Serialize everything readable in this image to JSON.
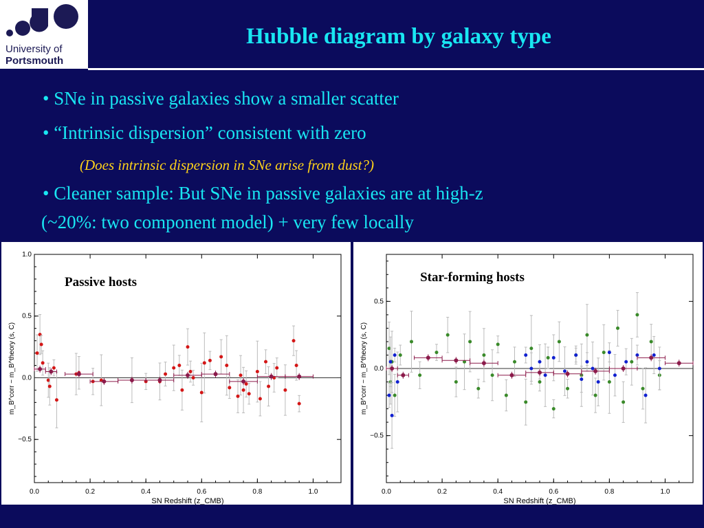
{
  "header": {
    "logo_line1": "University of",
    "logo_line2": "Portsmouth",
    "title": "Hubble diagram by galaxy type"
  },
  "colors": {
    "background": "#0b0b5c",
    "title": "#19e6f2",
    "note": "#ffd21a",
    "passive_points": "#d41616",
    "starforming_points": "#3a8a2a",
    "highz_points": "#1020d0",
    "binned": "#8b1a4a"
  },
  "bullets": [
    {
      "text": "• SNe in passive galaxies show a smaller scatter"
    },
    {
      "text": "• “Intrinsic dispersion” consistent with zero"
    },
    {
      "text": "• Cleaner sample: But SNe in passive galaxies are at high-z"
    },
    {
      "text": "(~20%: two component model) + very few locally"
    }
  ],
  "note": "(Does intrinsic dispersion in SNe arise from dust?)",
  "chart_data": [
    {
      "type": "scatter",
      "title": "Passive hosts",
      "xlabel": "SN Redshift (z_CMB)",
      "ylabel": "m_B^corr − m_B^theory (s, C)",
      "xlim": [
        0.0,
        1.1
      ],
      "ylim": [
        -0.85,
        1.0
      ],
      "xticks": [
        "0.0",
        "0.2",
        "0.4",
        "0.6",
        "0.8",
        "1.0"
      ],
      "yticks": [
        "−0.5",
        "0.0",
        "0.5",
        "1.0"
      ],
      "series": [
        {
          "marker": "filled circle",
          "color": "red",
          "points": [
            {
              "x": 0.01,
              "y": 0.2
            },
            {
              "x": 0.02,
              "y": 0.35
            },
            {
              "x": 0.025,
              "y": 0.27
            },
            {
              "x": 0.03,
              "y": 0.12
            },
            {
              "x": 0.05,
              "y": -0.02
            },
            {
              "x": 0.055,
              "y": -0.07
            },
            {
              "x": 0.07,
              "y": 0.08
            },
            {
              "x": 0.08,
              "y": -0.18
            },
            {
              "x": 0.15,
              "y": 0.03
            },
            {
              "x": 0.16,
              "y": 0.04
            },
            {
              "x": 0.21,
              "y": -0.03
            },
            {
              "x": 0.24,
              "y": -0.02
            },
            {
              "x": 0.35,
              "y": -0.02
            },
            {
              "x": 0.4,
              "y": -0.03
            },
            {
              "x": 0.45,
              "y": -0.03
            },
            {
              "x": 0.47,
              "y": 0.03
            },
            {
              "x": 0.5,
              "y": 0.08
            },
            {
              "x": 0.52,
              "y": 0.1
            },
            {
              "x": 0.53,
              "y": -0.1
            },
            {
              "x": 0.55,
              "y": 0.25
            },
            {
              "x": 0.56,
              "y": 0.05
            },
            {
              "x": 0.57,
              "y": 0.0
            },
            {
              "x": 0.6,
              "y": -0.12
            },
            {
              "x": 0.61,
              "y": 0.12
            },
            {
              "x": 0.63,
              "y": 0.14
            },
            {
              "x": 0.67,
              "y": 0.17
            },
            {
              "x": 0.69,
              "y": 0.1
            },
            {
              "x": 0.7,
              "y": -0.08
            },
            {
              "x": 0.73,
              "y": -0.15
            },
            {
              "x": 0.74,
              "y": 0.02
            },
            {
              "x": 0.75,
              "y": -0.1
            },
            {
              "x": 0.76,
              "y": -0.05
            },
            {
              "x": 0.77,
              "y": -0.13
            },
            {
              "x": 0.8,
              "y": 0.05
            },
            {
              "x": 0.81,
              "y": -0.17
            },
            {
              "x": 0.83,
              "y": 0.13
            },
            {
              "x": 0.84,
              "y": -0.07
            },
            {
              "x": 0.86,
              "y": 0.0
            },
            {
              "x": 0.87,
              "y": 0.08
            },
            {
              "x": 0.9,
              "y": -0.1
            },
            {
              "x": 0.93,
              "y": 0.3
            },
            {
              "x": 0.94,
              "y": 0.1
            },
            {
              "x": 0.95,
              "y": -0.21
            }
          ]
        },
        {
          "name": "binned",
          "marker": "binned means with x and y error bars",
          "color": "dark red",
          "points": [
            {
              "x": 0.02,
              "y": 0.07
            },
            {
              "x": 0.06,
              "y": 0.05
            },
            {
              "x": 0.16,
              "y": 0.03
            },
            {
              "x": 0.25,
              "y": -0.03
            },
            {
              "x": 0.35,
              "y": -0.02
            },
            {
              "x": 0.45,
              "y": -0.02
            },
            {
              "x": 0.55,
              "y": 0.02
            },
            {
              "x": 0.65,
              "y": 0.03
            },
            {
              "x": 0.75,
              "y": -0.03
            },
            {
              "x": 0.85,
              "y": 0.01
            },
            {
              "x": 0.95,
              "y": 0.01
            }
          ]
        }
      ]
    },
    {
      "type": "scatter",
      "title": "Star-forming hosts",
      "xlabel": "SN Redshift (z_CMB)",
      "ylabel": "m_B^corr − m_B^theory (s, C)",
      "xlim": [
        0.0,
        1.1
      ],
      "ylim": [
        -0.85,
        0.85
      ],
      "xticks": [
        "0.0",
        "0.2",
        "0.4",
        "0.6",
        "0.8",
        "1.0"
      ],
      "yticks": [
        "−0.5",
        "0.0",
        "0.5"
      ],
      "series": [
        {
          "marker": "filled circle",
          "color": "green",
          "points": [
            {
              "x": 0.01,
              "y": 0.15
            },
            {
              "x": 0.015,
              "y": -0.1
            },
            {
              "x": 0.02,
              "y": 0.05
            },
            {
              "x": 0.03,
              "y": -0.2
            },
            {
              "x": 0.05,
              "y": 0.1
            },
            {
              "x": 0.09,
              "y": 0.2
            },
            {
              "x": 0.12,
              "y": -0.05
            },
            {
              "x": 0.18,
              "y": 0.12
            },
            {
              "x": 0.22,
              "y": 0.25
            },
            {
              "x": 0.25,
              "y": -0.1
            },
            {
              "x": 0.28,
              "y": 0.05
            },
            {
              "x": 0.3,
              "y": 0.2
            },
            {
              "x": 0.33,
              "y": -0.15
            },
            {
              "x": 0.35,
              "y": 0.1
            },
            {
              "x": 0.38,
              "y": -0.05
            },
            {
              "x": 0.4,
              "y": 0.18
            },
            {
              "x": 0.43,
              "y": -0.2
            },
            {
              "x": 0.46,
              "y": 0.05
            },
            {
              "x": 0.5,
              "y": -0.25
            },
            {
              "x": 0.52,
              "y": 0.15
            },
            {
              "x": 0.55,
              "y": -0.1
            },
            {
              "x": 0.58,
              "y": 0.08
            },
            {
              "x": 0.6,
              "y": -0.3
            },
            {
              "x": 0.62,
              "y": 0.2
            },
            {
              "x": 0.65,
              "y": -0.15
            },
            {
              "x": 0.68,
              "y": 0.1
            },
            {
              "x": 0.7,
              "y": -0.05
            },
            {
              "x": 0.72,
              "y": 0.25
            },
            {
              "x": 0.75,
              "y": -0.2
            },
            {
              "x": 0.78,
              "y": 0.12
            },
            {
              "x": 0.8,
              "y": -0.1
            },
            {
              "x": 0.83,
              "y": 0.3
            },
            {
              "x": 0.85,
              "y": -0.25
            },
            {
              "x": 0.88,
              "y": 0.05
            },
            {
              "x": 0.9,
              "y": 0.4
            },
            {
              "x": 0.92,
              "y": -0.15
            },
            {
              "x": 0.95,
              "y": 0.2
            },
            {
              "x": 0.98,
              "y": -0.05
            }
          ]
        },
        {
          "marker": "filled circle",
          "color": "blue",
          "points": [
            {
              "x": 0.01,
              "y": -0.2
            },
            {
              "x": 0.015,
              "y": 0.05
            },
            {
              "x": 0.02,
              "y": -0.35
            },
            {
              "x": 0.03,
              "y": 0.1
            },
            {
              "x": 0.04,
              "y": -0.1
            },
            {
              "x": 0.5,
              "y": 0.1
            },
            {
              "x": 0.52,
              "y": 0.0
            },
            {
              "x": 0.55,
              "y": 0.05
            },
            {
              "x": 0.57,
              "y": -0.05
            },
            {
              "x": 0.6,
              "y": 0.08
            },
            {
              "x": 0.64,
              "y": -0.02
            },
            {
              "x": 0.68,
              "y": 0.1
            },
            {
              "x": 0.7,
              "y": -0.08
            },
            {
              "x": 0.72,
              "y": 0.05
            },
            {
              "x": 0.74,
              "y": 0.0
            },
            {
              "x": 0.76,
              "y": -0.1
            },
            {
              "x": 0.8,
              "y": 0.12
            },
            {
              "x": 0.82,
              "y": -0.05
            },
            {
              "x": 0.86,
              "y": 0.05
            },
            {
              "x": 0.9,
              "y": 0.1
            },
            {
              "x": 0.93,
              "y": -0.2
            },
            {
              "x": 0.96,
              "y": 0.1
            },
            {
              "x": 0.98,
              "y": 0.0
            }
          ]
        },
        {
          "name": "binned",
          "marker": "binned means with x and y error bars",
          "color": "dark red",
          "points": [
            {
              "x": 0.02,
              "y": 0.0
            },
            {
              "x": 0.06,
              "y": -0.05
            },
            {
              "x": 0.15,
              "y": 0.08
            },
            {
              "x": 0.25,
              "y": 0.06
            },
            {
              "x": 0.35,
              "y": 0.04
            },
            {
              "x": 0.45,
              "y": -0.05
            },
            {
              "x": 0.55,
              "y": -0.03
            },
            {
              "x": 0.65,
              "y": -0.04
            },
            {
              "x": 0.75,
              "y": -0.02
            },
            {
              "x": 0.85,
              "y": 0.0
            },
            {
              "x": 0.95,
              "y": 0.08
            },
            {
              "x": 1.05,
              "y": 0.04
            }
          ]
        }
      ]
    }
  ]
}
